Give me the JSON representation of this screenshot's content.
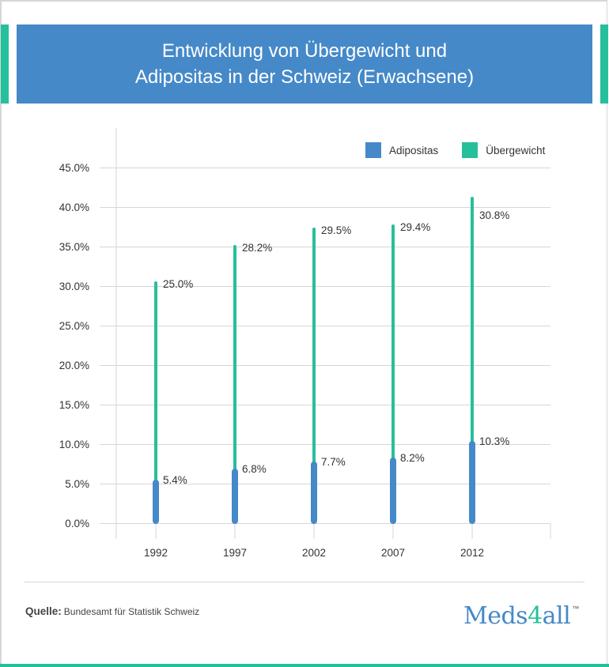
{
  "header": {
    "title_line1": "Entwicklung von Übergewicht und",
    "title_line2": "Adipositas in der Schweiz (Erwachsene)"
  },
  "colors": {
    "brand_blue": "#4589c8",
    "brand_green": "#26bf9b"
  },
  "legend": [
    {
      "label": "Adipositas",
      "color": "#4589c8"
    },
    {
      "label": "Übergewicht",
      "color": "#26bf9b"
    }
  ],
  "chart_data": {
    "type": "bar",
    "stacked": true,
    "title": "Entwicklung von Übergewicht und Adipositas in der Schweiz (Erwachsene)",
    "xlabel": "",
    "ylabel": "",
    "categories": [
      "1992",
      "1997",
      "2002",
      "2007",
      "2012"
    ],
    "series": [
      {
        "name": "Adipositas",
        "color": "#4589c8",
        "values": [
          5.4,
          6.8,
          7.7,
          8.2,
          10.3
        ],
        "labels": [
          "5.4%",
          "6.8%",
          "7.7%",
          "8.2%",
          "10.3%"
        ]
      },
      {
        "name": "Übergewicht",
        "color": "#26bf9b",
        "values": [
          25.0,
          28.2,
          29.5,
          29.4,
          30.8
        ],
        "labels": [
          "25.0%",
          "28.2%",
          "29.5%",
          "29.4%",
          "30.8%"
        ]
      }
    ],
    "ylim": [
      0,
      45
    ],
    "yticks": [
      "0.0%",
      "5.0%",
      "10.0%",
      "15.0%",
      "20.0%",
      "25.0%",
      "30.0%",
      "35.0%",
      "40.0%",
      "45.0%"
    ],
    "grid": true,
    "legend_position": "top-right"
  },
  "footer": {
    "source_label": "Quelle:",
    "source_text": "Bundesamt für Statistik Schweiz",
    "logo_part1": "Meds",
    "logo_part2": "4",
    "logo_part3": "all",
    "logo_tm": "™"
  }
}
